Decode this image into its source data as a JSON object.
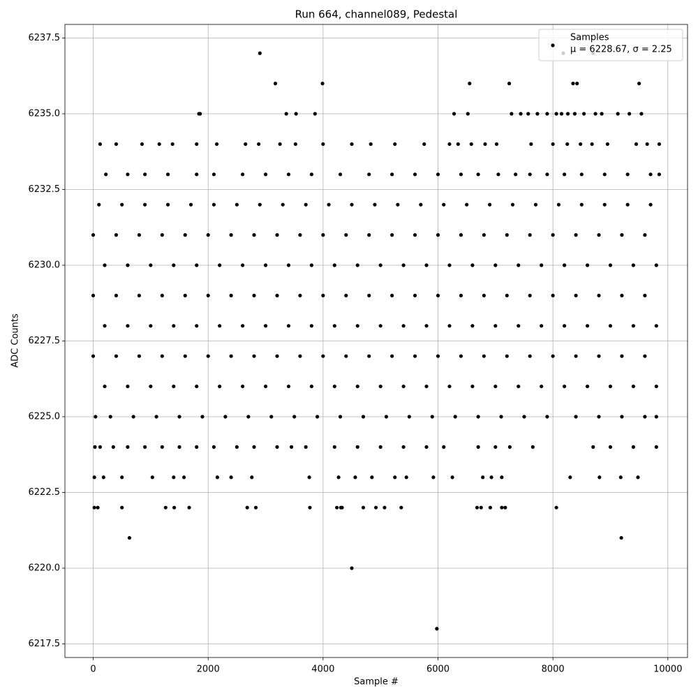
{
  "chart_data": {
    "type": "scatter",
    "title": "Run 664, channel089, Pedestal",
    "x_label": "Sample #",
    "y_label": "ADC Counts",
    "xlim": [
      -492.5,
      10342.5
    ],
    "xticks": [
      0,
      2000,
      4000,
      6000,
      8000,
      10000
    ],
    "ylim": [
      6217.05,
      6237.95
    ],
    "yticks": [
      6217.5,
      {
        "value": 6220,
        "label": "6220.0"
      },
      6222.5,
      {
        "value": 6225,
        "label": "6225.0"
      },
      6227.5,
      {
        "value": 6230,
        "label": "6230.0"
      },
      6232.5,
      {
        "value": 6235,
        "label": "6235.0"
      },
      6237.5
    ],
    "grid": true,
    "legend": "upper right",
    "legend_note": "μ = 6228.67, σ = 2.25",
    "x": [
      0,
      400,
      800,
      1200,
      1600,
      2000,
      2400,
      2800,
      3200,
      3600,
      4000,
      4400,
      4800,
      5200,
      5600,
      6000,
      6400,
      6800,
      7200,
      7600,
      8000,
      8400,
      8800,
      9200,
      9600,
      200,
      600,
      1000,
      1400,
      1800,
      2200,
      2600,
      3000,
      3400,
      3800,
      4200,
      4600,
      5000,
      5400,
      5800,
      6200,
      6600,
      7000,
      7400,
      7800,
      8200,
      8600,
      9000,
      9400,
      9800,
      0,
      400,
      800,
      1200,
      1600,
      2000,
      2400,
      2800,
      3200,
      3600,
      4000,
      4400,
      4800,
      5200,
      5600,
      6000,
      6400,
      6800,
      7200,
      7600,
      8000,
      8400,
      8800,
      9200,
      9600,
      200,
      600,
      1000,
      1400,
      1800,
      2200,
      2600,
      3000,
      3400,
      3800,
      4200,
      4600,
      5000,
      5400,
      5800,
      6200,
      6600,
      7000,
      7400,
      7800,
      8200,
      8600,
      9000,
      9400,
      9800,
      0,
      400,
      800,
      1200,
      1600,
      2000,
      2400,
      2800,
      3200,
      3600,
      4000,
      4400,
      4800,
      5200,
      5600,
      6000,
      6400,
      6800,
      7200,
      7600,
      8000,
      8400,
      8800,
      9200,
      9600,
      200,
      600,
      1000,
      1400,
      1800,
      2200,
      2600,
      3000,
      3400,
      3800,
      4200,
      4600,
      5000,
      5400,
      5800,
      6200,
      6600,
      7000,
      7400,
      7800,
      8200,
      8600,
      9000,
      9400,
      9800,
      100,
      500,
      900,
      1300,
      1700,
      2100,
      2500,
      2900,
      3300,
      3700,
      4100,
      4500,
      4900,
      5300,
      5700,
      6100,
      6500,
      6900,
      7300,
      7700,
      8100,
      8500,
      8900,
      9300,
      9700,
      40,
      300,
      700,
      1100,
      1500,
      1900,
      2300,
      2700,
      3100,
      3500,
      3900,
      4300,
      4700,
      5100,
      5500,
      5900,
      6300,
      6700,
      7100,
      7500,
      7900,
      8400,
      8800,
      9200,
      9600,
      9800,
      220,
      600,
      900,
      1300,
      1800,
      2100,
      2600,
      3000,
      3400,
      3800,
      4300,
      4800,
      5200,
      5600,
      6000,
      6400,
      6700,
      7050,
      7350,
      7600,
      7900,
      8200,
      8500,
      8900,
      9300,
      9700,
      9850,
      120,
      400,
      850,
      1150,
      1380,
      1800,
      2150,
      2650,
      2880,
      3250,
      3520,
      4000,
      4500,
      4830,
      5250,
      5760,
      6200,
      6350,
      6580,
      6820,
      7020,
      7620,
      8000,
      8250,
      8480,
      8680,
      8950,
      9450,
      9640,
      9850,
      30,
      120,
      350,
      600,
      900,
      1200,
      1500,
      1800,
      2100,
      2500,
      2800,
      3200,
      3450,
      3700,
      4200,
      4600,
      5000,
      5400,
      5800,
      6100,
      6700,
      7000,
      7250,
      7650,
      8700,
      9000,
      9400,
      9800,
      20,
      180,
      500,
      1030,
      1400,
      1580,
      2160,
      2400,
      2760,
      3760,
      4270,
      4560,
      4850,
      5250,
      5450,
      5920,
      6250,
      6780,
      6930,
      7110,
      8300,
      8810,
      9180,
      9480,
      20,
      80,
      500,
      1260,
      1410,
      1670,
      2680,
      2830,
      3770,
      4240,
      4310,
      4330,
      4700,
      4920,
      5070,
      5360,
      6680,
      6750,
      6910,
      7110,
      7170,
      8060,
      1840,
      1860,
      3360,
      3530,
      3860,
      6280,
      6520,
      7280,
      7440,
      7570,
      7730,
      7900,
      8060,
      8150,
      8260,
      8380,
      8540,
      8740,
      8850,
      9130,
      9330,
      9540,
      3170,
      3990,
      6550,
      7240,
      8350,
      8420,
      9500,
      2900,
      8180,
      8700,
      630,
      9190,
      4500,
      5980
    ],
    "series": [
      {
        "name": "Samples",
        "color": "#000000",
        "values": [
          6231,
          6231,
          6231,
          6231,
          6231,
          6231,
          6231,
          6231,
          6231,
          6231,
          6231,
          6231,
          6231,
          6231,
          6231,
          6231,
          6231,
          6231,
          6231,
          6231,
          6231,
          6231,
          6231,
          6231,
          6231,
          6230,
          6230,
          6230,
          6230,
          6230,
          6230,
          6230,
          6230,
          6230,
          6230,
          6230,
          6230,
          6230,
          6230,
          6230,
          6230,
          6230,
          6230,
          6230,
          6230,
          6230,
          6230,
          6230,
          6230,
          6230,
          6229,
          6229,
          6229,
          6229,
          6229,
          6229,
          6229,
          6229,
          6229,
          6229,
          6229,
          6229,
          6229,
          6229,
          6229,
          6229,
          6229,
          6229,
          6229,
          6229,
          6229,
          6229,
          6229,
          6229,
          6229,
          6228,
          6228,
          6228,
          6228,
          6228,
          6228,
          6228,
          6228,
          6228,
          6228,
          6228,
          6228,
          6228,
          6228,
          6228,
          6228,
          6228,
          6228,
          6228,
          6228,
          6228,
          6228,
          6228,
          6228,
          6228,
          6227,
          6227,
          6227,
          6227,
          6227,
          6227,
          6227,
          6227,
          6227,
          6227,
          6227,
          6227,
          6227,
          6227,
          6227,
          6227,
          6227,
          6227,
          6227,
          6227,
          6227,
          6227,
          6227,
          6227,
          6227,
          6226,
          6226,
          6226,
          6226,
          6226,
          6226,
          6226,
          6226,
          6226,
          6226,
          6226,
          6226,
          6226,
          6226,
          6226,
          6226,
          6226,
          6226,
          6226,
          6226,
          6226,
          6226,
          6226,
          6226,
          6226,
          6232,
          6232,
          6232,
          6232,
          6232,
          6232,
          6232,
          6232,
          6232,
          6232,
          6232,
          6232,
          6232,
          6232,
          6232,
          6232,
          6232,
          6232,
          6232,
          6232,
          6232,
          6232,
          6232,
          6232,
          6232,
          6225,
          6225,
          6225,
          6225,
          6225,
          6225,
          6225,
          6225,
          6225,
          6225,
          6225,
          6225,
          6225,
          6225,
          6225,
          6225,
          6225,
          6225,
          6225,
          6225,
          6225,
          6225,
          6225,
          6225,
          6225,
          6225,
          6233,
          6233,
          6233,
          6233,
          6233,
          6233,
          6233,
          6233,
          6233,
          6233,
          6233,
          6233,
          6233,
          6233,
          6233,
          6233,
          6233,
          6233,
          6233,
          6233,
          6233,
          6233,
          6233,
          6233,
          6233,
          6233,
          6233,
          6234,
          6234,
          6234,
          6234,
          6234,
          6234,
          6234,
          6234,
          6234,
          6234,
          6234,
          6234,
          6234,
          6234,
          6234,
          6234,
          6234,
          6234,
          6234,
          6234,
          6234,
          6234,
          6234,
          6234,
          6234,
          6234,
          6234,
          6234,
          6234,
          6234,
          6224,
          6224,
          6224,
          6224,
          6224,
          6224,
          6224,
          6224,
          6224,
          6224,
          6224,
          6224,
          6224,
          6224,
          6224,
          6224,
          6224,
          6224,
          6224,
          6224,
          6224,
          6224,
          6224,
          6224,
          6224,
          6224,
          6224,
          6224,
          6223,
          6223,
          6223,
          6223,
          6223,
          6223,
          6223,
          6223,
          6223,
          6223,
          6223,
          6223,
          6223,
          6223,
          6223,
          6223,
          6223,
          6223,
          6223,
          6223,
          6223,
          6223,
          6223,
          6223,
          6222,
          6222,
          6222,
          6222,
          6222,
          6222,
          6222,
          6222,
          6222,
          6222,
          6222,
          6222,
          6222,
          6222,
          6222,
          6222,
          6222,
          6222,
          6222,
          6222,
          6222,
          6222,
          6235,
          6235,
          6235,
          6235,
          6235,
          6235,
          6235,
          6235,
          6235,
          6235,
          6235,
          6235,
          6235,
          6235,
          6235,
          6235,
          6235,
          6235,
          6235,
          6235,
          6235,
          6235,
          6236,
          6236,
          6236,
          6236,
          6236,
          6236,
          6236,
          6237,
          6237,
          6237,
          6221,
          6221,
          6220,
          6218
        ]
      }
    ]
  }
}
